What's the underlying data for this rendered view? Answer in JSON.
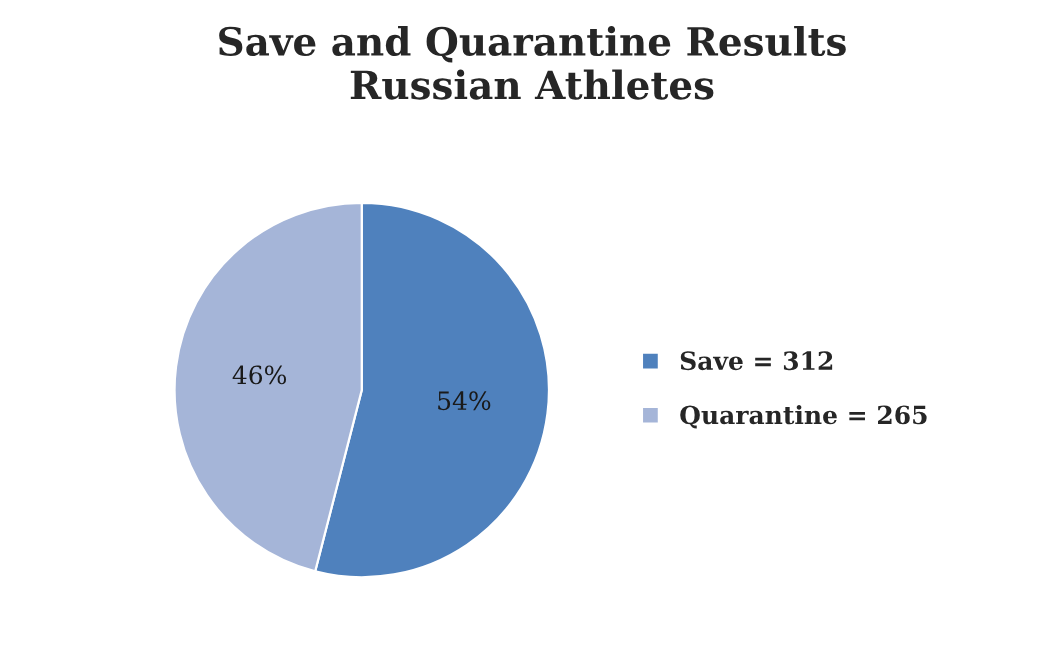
{
  "chart_data": {
    "type": "pie",
    "title": "Save and Quarantine Results\nRussian Athletes",
    "categories": [
      "Save = 312",
      "Quarantine = 265"
    ],
    "values": [
      54,
      46
    ],
    "value_labels": [
      "54%",
      "46%"
    ],
    "colors": [
      "#4f81bd",
      "#a5b5d8"
    ],
    "legend": "right"
  }
}
